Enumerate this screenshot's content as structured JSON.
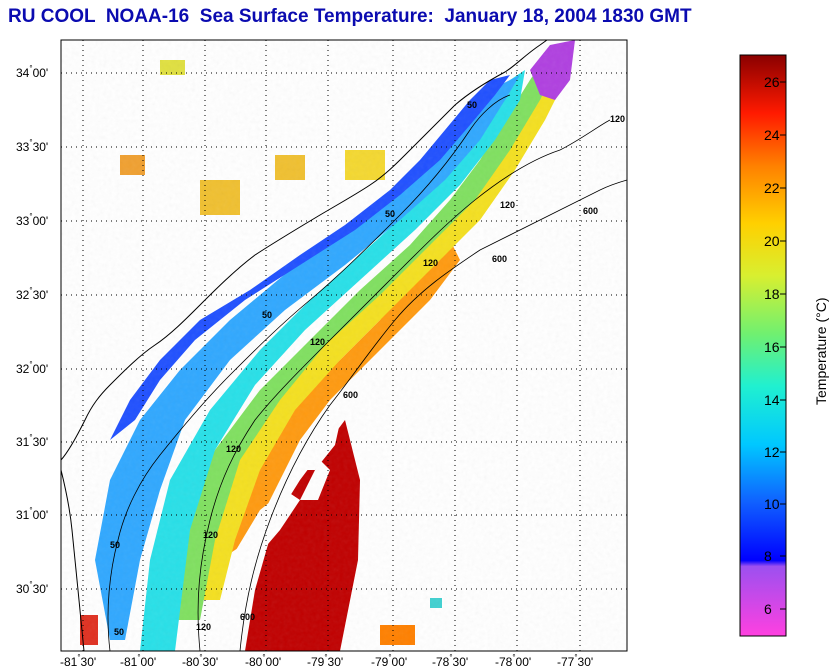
{
  "title": "RU COOL  NOAA-16  Sea Surface Temperature:  January 18, 2004 1830 GMT",
  "map": {
    "lat_labels": [
      {
        "deg": "34",
        "min": "00'"
      },
      {
        "deg": "33",
        "min": "30'"
      },
      {
        "deg": "33",
        "min": "00'"
      },
      {
        "deg": "32",
        "min": "30'"
      },
      {
        "deg": "32",
        "min": "00'"
      },
      {
        "deg": "31",
        "min": "30'"
      },
      {
        "deg": "31",
        "min": "00'"
      },
      {
        "deg": "30",
        "min": "30'"
      }
    ],
    "lon_labels": [
      {
        "deg": "-81",
        "min": "30'"
      },
      {
        "deg": "-81",
        "min": "00'"
      },
      {
        "deg": "-80",
        "min": "30'"
      },
      {
        "deg": "-80",
        "min": "00'"
      },
      {
        "deg": "-79",
        "min": "30'"
      },
      {
        "deg": "-79",
        "min": "00'"
      },
      {
        "deg": "-78",
        "min": "30'"
      },
      {
        "deg": "-78",
        "min": "00'"
      },
      {
        "deg": "-77",
        "min": "30'"
      }
    ],
    "contour_labels": [
      "50",
      "50",
      "50",
      "50",
      "50",
      "120",
      "120",
      "120",
      "120",
      "120",
      "120",
      "120",
      "600",
      "600",
      "600",
      "600"
    ]
  },
  "colorbar": {
    "title": "Temperature (°C)",
    "ticks": [
      "26",
      "24",
      "22",
      "20",
      "18",
      "16",
      "14",
      "12",
      "10",
      "8",
      "6"
    ],
    "colors": {
      "c5": "#ff40e0",
      "c7": "#8050f0",
      "c8": "#0000ff",
      "c10": "#1060ff",
      "c12": "#00c8ff",
      "c14": "#20f0d0",
      "c16": "#70f070",
      "c18": "#d8ef30",
      "c20": "#ffd000",
      "c22": "#ff8000",
      "c24": "#ff1a00",
      "c26": "#b00000",
      "c27": "#7a0000"
    }
  }
}
